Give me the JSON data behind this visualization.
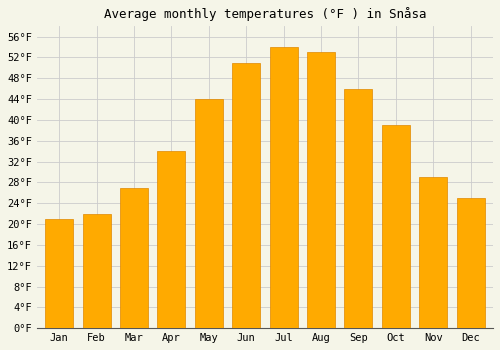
{
  "title": "Average monthly temperatures (°F ) in Snåsa",
  "months": [
    "Jan",
    "Feb",
    "Mar",
    "Apr",
    "May",
    "Jun",
    "Jul",
    "Aug",
    "Sep",
    "Oct",
    "Nov",
    "Dec"
  ],
  "values": [
    21,
    22,
    27,
    34,
    44,
    51,
    54,
    53,
    46,
    39,
    29,
    25
  ],
  "bar_color": "#FFAA00",
  "bar_edge_color": "#E08800",
  "ylim": [
    0,
    58
  ],
  "yticks": [
    0,
    4,
    8,
    12,
    16,
    20,
    24,
    28,
    32,
    36,
    40,
    44,
    48,
    52,
    56
  ],
  "ytick_labels": [
    "0°F",
    "4°F",
    "8°F",
    "12°F",
    "16°F",
    "20°F",
    "24°F",
    "28°F",
    "32°F",
    "36°F",
    "40°F",
    "44°F",
    "48°F",
    "52°F",
    "56°F"
  ],
  "background_color": "#F5F5E8",
  "grid_color": "#CCCCCC",
  "title_fontsize": 9,
  "tick_fontsize": 7.5,
  "bar_width": 0.75
}
